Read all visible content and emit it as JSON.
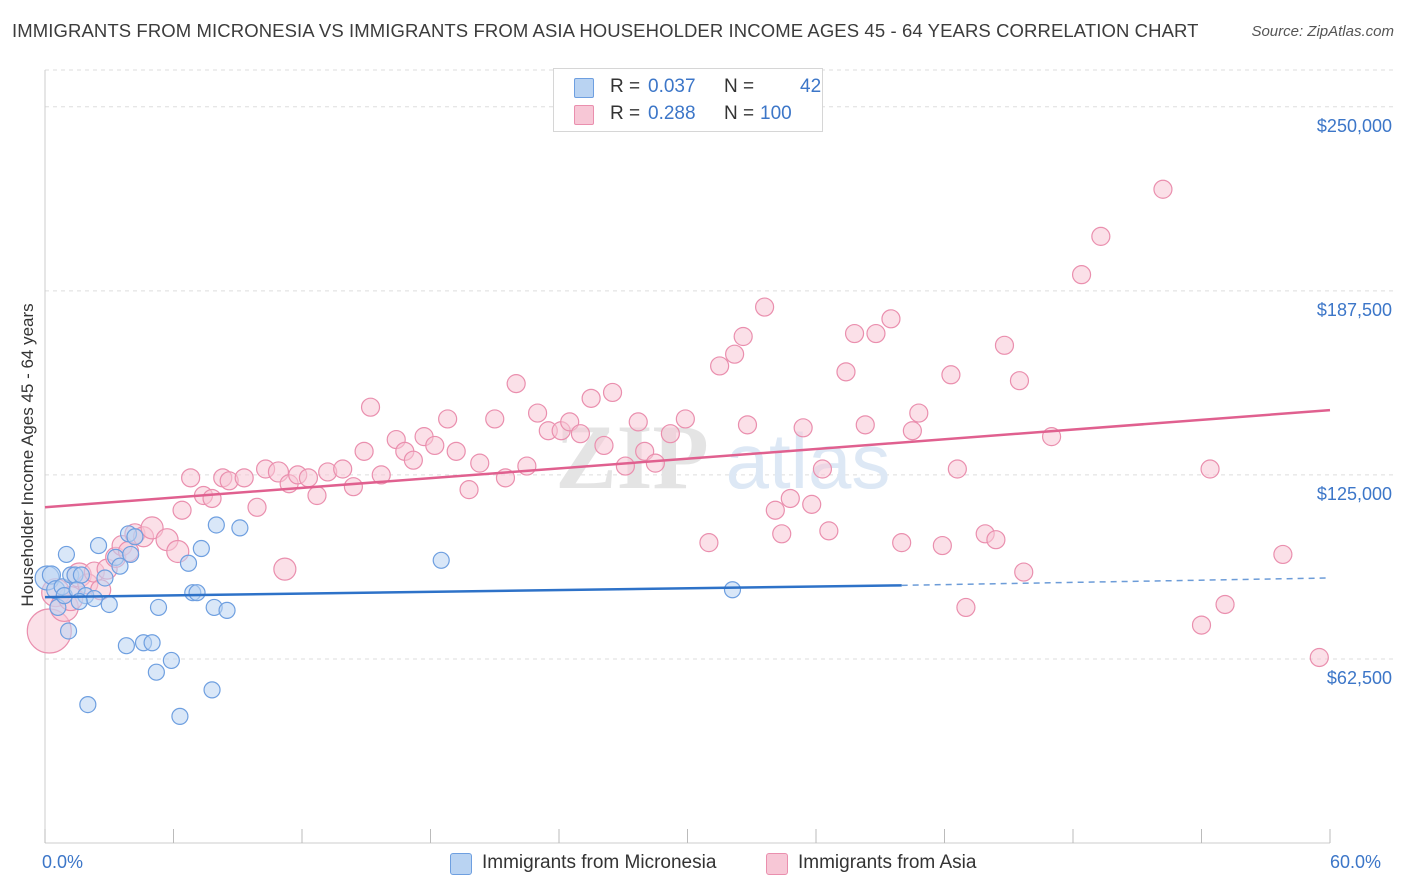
{
  "header": {
    "title": "IMMIGRANTS FROM MICRONESIA VS IMMIGRANTS FROM ASIA HOUSEHOLDER INCOME AGES 45 - 64 YEARS CORRELATION CHART",
    "source": "Source: ZipAtlas.com"
  },
  "legend": {
    "r_label": "R =",
    "n_label": "N =",
    "micronesia": {
      "r": "0.037",
      "n": "42"
    },
    "asia": {
      "r": "0.288",
      "n": "100"
    }
  },
  "watermark": {
    "zip": "ZIP",
    "atlas": "atlas"
  },
  "colors": {
    "micronesia_fill": "#b9d3f2",
    "micronesia_stroke": "#6e9fe0",
    "micronesia_line": "#2e72c8",
    "asia_fill": "#f7c7d6",
    "asia_stroke": "#ea8fae",
    "asia_line": "#e0608f",
    "axis_label": "#3c76c8",
    "grid": "#dddddd"
  },
  "chart_data": {
    "type": "scatter",
    "title": "IMMIGRANTS FROM MICRONESIA VS IMMIGRANTS FROM ASIA HOUSEHOLDER INCOME AGES 45 - 64 YEARS CORRELATION CHART",
    "xlabel": "",
    "ylabel": "Householder Income Ages 45 - 64 years",
    "xlim": [
      0,
      60
    ],
    "ylim": [
      0,
      262500
    ],
    "x_tick_labels": [
      "0.0%",
      "60.0%"
    ],
    "y_ticks": [
      62500,
      125000,
      187500,
      250000
    ],
    "y_tick_labels": [
      "$62,500",
      "$125,000",
      "$187,500",
      "$250,000"
    ],
    "grid": true,
    "legend_position": "top-center and bottom",
    "series": [
      {
        "name": "Immigrants from Micronesia",
        "r": 0.037,
        "n": 42,
        "trend": {
          "x_start": 0,
          "y_start": 83500,
          "x_end": 40,
          "y_end": 87500,
          "dashed_to_x": 60,
          "dashed_to_y": 90000
        },
        "points": [
          [
            0.1,
            90000,
            12
          ],
          [
            0.3,
            91000,
            9
          ],
          [
            0.5,
            86000,
            9
          ],
          [
            0.6,
            80000,
            8
          ],
          [
            0.8,
            87000,
            8
          ],
          [
            0.9,
            84000,
            8
          ],
          [
            1.0,
            98000,
            8
          ],
          [
            1.1,
            72000,
            8
          ],
          [
            1.2,
            91000,
            8
          ],
          [
            1.4,
            91000,
            8
          ],
          [
            1.5,
            86000,
            8
          ],
          [
            1.7,
            91000,
            8
          ],
          [
            1.9,
            84000,
            8
          ],
          [
            2.0,
            47000,
            8
          ],
          [
            2.3,
            83000,
            8
          ],
          [
            2.5,
            101000,
            8
          ],
          [
            2.8,
            90000,
            8
          ],
          [
            3.0,
            81000,
            8
          ],
          [
            3.3,
            97000,
            8
          ],
          [
            3.5,
            94000,
            8
          ],
          [
            3.8,
            67000,
            8
          ],
          [
            3.9,
            105000,
            8
          ],
          [
            4.0,
            98000,
            8
          ],
          [
            4.2,
            104000,
            8
          ],
          [
            4.6,
            68000,
            8
          ],
          [
            5.0,
            68000,
            8
          ],
          [
            5.2,
            58000,
            8
          ],
          [
            5.3,
            80000,
            8
          ],
          [
            5.9,
            62000,
            8
          ],
          [
            6.3,
            43000,
            8
          ],
          [
            6.7,
            95000,
            8
          ],
          [
            6.9,
            85000,
            8
          ],
          [
            7.1,
            85000,
            8
          ],
          [
            7.3,
            100000,
            8
          ],
          [
            7.8,
            52000,
            8
          ],
          [
            7.9,
            80000,
            8
          ],
          [
            8.0,
            108000,
            8
          ],
          [
            8.5,
            79000,
            8
          ],
          [
            9.1,
            107000,
            8
          ],
          [
            18.5,
            96000,
            8
          ],
          [
            32.1,
            86000,
            8
          ],
          [
            1.6,
            82000,
            8
          ]
        ]
      },
      {
        "name": "Immigrants from Asia",
        "r": 0.288,
        "n": 100,
        "trend": {
          "x_start": 0,
          "y_start": 114000,
          "x_end": 60,
          "y_end": 147000
        },
        "points": [
          [
            0.2,
            72000,
            22
          ],
          [
            0.5,
            85000,
            14
          ],
          [
            0.9,
            80000,
            14
          ],
          [
            1.2,
            83000,
            12
          ],
          [
            1.6,
            91000,
            12
          ],
          [
            2.0,
            88000,
            10
          ],
          [
            2.3,
            92000,
            10
          ],
          [
            2.6,
            86000,
            10
          ],
          [
            2.9,
            93000,
            10
          ],
          [
            3.3,
            97000,
            10
          ],
          [
            3.6,
            101000,
            10
          ],
          [
            3.9,
            99000,
            10
          ],
          [
            4.2,
            105000,
            10
          ],
          [
            4.6,
            104000,
            10
          ],
          [
            5.0,
            107000,
            11
          ],
          [
            5.7,
            103000,
            11
          ],
          [
            6.2,
            99000,
            11
          ],
          [
            6.4,
            113000,
            9
          ],
          [
            6.8,
            124000,
            9
          ],
          [
            7.4,
            118000,
            9
          ],
          [
            7.8,
            117000,
            9
          ],
          [
            8.3,
            124000,
            9
          ],
          [
            8.6,
            123000,
            9
          ],
          [
            9.3,
            124000,
            9
          ],
          [
            9.9,
            114000,
            9
          ],
          [
            10.3,
            127000,
            9
          ],
          [
            10.9,
            126000,
            10
          ],
          [
            11.2,
            93000,
            11
          ],
          [
            11.4,
            122000,
            9
          ],
          [
            11.8,
            125000,
            9
          ],
          [
            12.3,
            124000,
            9
          ],
          [
            12.7,
            118000,
            9
          ],
          [
            13.2,
            126000,
            9
          ],
          [
            13.9,
            127000,
            9
          ],
          [
            14.4,
            121000,
            9
          ],
          [
            14.9,
            133000,
            9
          ],
          [
            15.2,
            148000,
            9
          ],
          [
            15.7,
            125000,
            9
          ],
          [
            16.4,
            137000,
            9
          ],
          [
            16.8,
            133000,
            9
          ],
          [
            17.2,
            130000,
            9
          ],
          [
            17.7,
            138000,
            9
          ],
          [
            18.2,
            135000,
            9
          ],
          [
            18.8,
            144000,
            9
          ],
          [
            19.2,
            133000,
            9
          ],
          [
            19.8,
            120000,
            9
          ],
          [
            20.3,
            129000,
            9
          ],
          [
            21.0,
            144000,
            9
          ],
          [
            21.5,
            124000,
            9
          ],
          [
            22.0,
            156000,
            9
          ],
          [
            22.5,
            128000,
            9
          ],
          [
            23.0,
            146000,
            9
          ],
          [
            23.5,
            140000,
            9
          ],
          [
            24.1,
            140000,
            9
          ],
          [
            24.5,
            143000,
            9
          ],
          [
            25.0,
            139000,
            9
          ],
          [
            25.5,
            151000,
            9
          ],
          [
            26.1,
            135000,
            9
          ],
          [
            26.5,
            153000,
            9
          ],
          [
            27.1,
            128000,
            9
          ],
          [
            27.7,
            143000,
            9
          ],
          [
            28.0,
            133000,
            9
          ],
          [
            28.5,
            129000,
            9
          ],
          [
            29.2,
            139000,
            9
          ],
          [
            29.9,
            144000,
            9
          ],
          [
            31.0,
            102000,
            9
          ],
          [
            31.5,
            162000,
            9
          ],
          [
            32.2,
            166000,
            9
          ],
          [
            32.6,
            172000,
            9
          ],
          [
            32.8,
            142000,
            9
          ],
          [
            33.6,
            182000,
            9
          ],
          [
            34.1,
            113000,
            9
          ],
          [
            34.4,
            105000,
            9
          ],
          [
            34.8,
            117000,
            9
          ],
          [
            35.4,
            141000,
            9
          ],
          [
            35.8,
            115000,
            9
          ],
          [
            36.3,
            127000,
            9
          ],
          [
            36.6,
            106000,
            9
          ],
          [
            37.4,
            160000,
            9
          ],
          [
            37.8,
            173000,
            9
          ],
          [
            38.3,
            142000,
            9
          ],
          [
            38.8,
            173000,
            9
          ],
          [
            39.5,
            178000,
            9
          ],
          [
            40.0,
            102000,
            9
          ],
          [
            40.5,
            140000,
            9
          ],
          [
            40.8,
            146000,
            9
          ],
          [
            41.9,
            101000,
            9
          ],
          [
            42.3,
            159000,
            9
          ],
          [
            42.6,
            127000,
            9
          ],
          [
            43.0,
            80000,
            9
          ],
          [
            43.9,
            105000,
            9
          ],
          [
            44.4,
            103000,
            9
          ],
          [
            44.8,
            169000,
            9
          ],
          [
            45.5,
            157000,
            9
          ],
          [
            45.7,
            92000,
            9
          ],
          [
            47.0,
            138000,
            9
          ],
          [
            48.4,
            193000,
            9
          ],
          [
            49.3,
            206000,
            9
          ],
          [
            52.2,
            222000,
            9
          ],
          [
            54.0,
            74000,
            9
          ],
          [
            54.4,
            127000,
            9
          ],
          [
            55.1,
            81000,
            9
          ],
          [
            57.8,
            98000,
            9
          ],
          [
            59.5,
            63000,
            9
          ]
        ]
      }
    ]
  },
  "bottom_legend": {
    "micronesia": "Immigrants from Micronesia",
    "asia": "Immigrants from Asia"
  }
}
